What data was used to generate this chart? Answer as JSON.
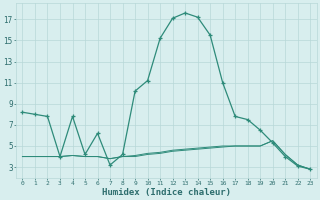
{
  "xlabel": "Humidex (Indice chaleur)",
  "x": [
    0,
    1,
    2,
    3,
    4,
    5,
    6,
    7,
    8,
    9,
    10,
    11,
    12,
    13,
    14,
    15,
    16,
    17,
    18,
    19,
    20,
    21,
    22,
    23
  ],
  "line1": [
    8.2,
    8.0,
    7.8,
    4.0,
    7.8,
    4.2,
    6.2,
    3.2,
    4.2,
    10.2,
    11.2,
    15.2,
    17.1,
    17.6,
    17.2,
    15.5,
    11.0,
    7.8,
    7.5,
    6.5,
    5.3,
    4.0,
    3.1,
    2.8
  ],
  "line2": [
    4.0,
    4.0,
    4.0,
    4.0,
    4.1,
    4.0,
    4.0,
    3.8,
    4.0,
    4.0,
    4.2,
    4.3,
    4.5,
    4.6,
    4.7,
    4.8,
    4.9,
    5.0,
    5.0,
    5.0,
    5.5,
    4.2,
    3.2,
    2.8
  ],
  "line3": [
    4.0,
    4.0,
    4.0,
    4.0,
    4.1,
    4.0,
    4.0,
    3.8,
    4.0,
    4.1,
    4.3,
    4.4,
    4.6,
    4.7,
    4.8,
    4.9,
    5.0,
    5.0,
    5.0,
    5.0,
    5.5,
    4.2,
    3.2,
    2.8
  ],
  "ylim": [
    2.0,
    18.5
  ],
  "xlim": [
    -0.5,
    23.5
  ],
  "yticks": [
    3,
    5,
    7,
    9,
    11,
    13,
    15,
    17
  ],
  "xticks": [
    0,
    1,
    2,
    3,
    4,
    5,
    6,
    7,
    8,
    9,
    10,
    11,
    12,
    13,
    14,
    15,
    16,
    17,
    18,
    19,
    20,
    21,
    22,
    23
  ],
  "line_color": "#2e8b7a",
  "bg_color": "#d8eeee",
  "grid_color": "#b8d8d8",
  "xlabel_color": "#2e6e6e"
}
